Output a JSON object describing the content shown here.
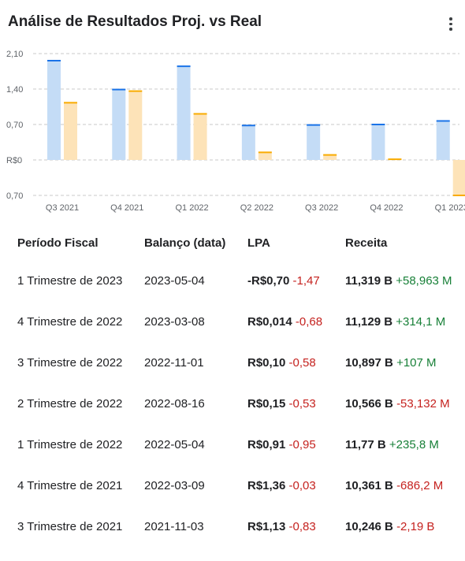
{
  "header": {
    "title": "Análise de Resultados Proj. vs Real",
    "menu_icon": "more-vert-icon"
  },
  "colors": {
    "projected": "#c4dcf6",
    "projected_edge": "#1a73e8",
    "actual": "#fde3b8",
    "actual_edge": "#f9ab00",
    "negative": "#c5221f",
    "positive": "#188038"
  },
  "chart_data": {
    "type": "bar",
    "categories": [
      "Q3 2021",
      "Q4 2021",
      "Q1 2022",
      "Q2 2022",
      "Q3 2022",
      "Q4 2022",
      "Q1 2023"
    ],
    "series": [
      {
        "values": [
          1.96,
          1.39,
          1.85,
          0.68,
          0.69,
          0.7,
          0.77
        ]
      },
      {
        "values": [
          1.13,
          1.36,
          0.91,
          0.15,
          0.1,
          0.014,
          -0.7
        ]
      }
    ],
    "y_tick_labels": [
      "2,10",
      "1,40",
      "0,70",
      "R$0",
      "0,70"
    ],
    "y_tick_values": [
      2.1,
      1.4,
      0.7,
      0,
      -0.7
    ],
    "ylim": [
      -0.7,
      2.1
    ],
    "grid": true
  },
  "table": {
    "headers": {
      "period": "Período Fiscal",
      "date": "Balanço (data)",
      "eps": "LPA",
      "revenue": "Receita"
    },
    "rows": [
      {
        "period": "1 Trimestre de 2023",
        "date": "2023-05-04",
        "eps": "-R$0,70",
        "eps_surprise": "-1,47",
        "eps_sign": "neg",
        "revenue": "11,319 B",
        "revenue_surprise": "+58,963 M",
        "revenue_sign": "pos"
      },
      {
        "period": "4 Trimestre de 2022",
        "date": "2023-03-08",
        "eps": "R$0,014",
        "eps_surprise": "-0,68",
        "eps_sign": "neg",
        "revenue": "11,129 B",
        "revenue_surprise": "+314,1 M",
        "revenue_sign": "pos"
      },
      {
        "period": "3 Trimestre de 2022",
        "date": "2022-11-01",
        "eps": "R$0,10",
        "eps_surprise": "-0,58",
        "eps_sign": "neg",
        "revenue": "10,897 B",
        "revenue_surprise": "+107 M",
        "revenue_sign": "pos"
      },
      {
        "period": "2 Trimestre de 2022",
        "date": "2022-08-16",
        "eps": "R$0,15",
        "eps_surprise": "-0,53",
        "eps_sign": "neg",
        "revenue": "10,566 B",
        "revenue_surprise": "-53,132 M",
        "revenue_sign": "neg"
      },
      {
        "period": "1 Trimestre de 2022",
        "date": "2022-05-04",
        "eps": "R$0,91",
        "eps_surprise": "-0,95",
        "eps_sign": "neg",
        "revenue": "11,77 B",
        "revenue_surprise": "+235,8 M",
        "revenue_sign": "pos"
      },
      {
        "period": "4 Trimestre de 2021",
        "date": "2022-03-09",
        "eps": "R$1,36",
        "eps_surprise": "-0,03",
        "eps_sign": "neg",
        "revenue": "10,361 B",
        "revenue_surprise": "-686,2 M",
        "revenue_sign": "neg"
      },
      {
        "period": "3 Trimestre de 2021",
        "date": "2021-11-03",
        "eps": "R$1,13",
        "eps_surprise": "-0,83",
        "eps_sign": "neg",
        "revenue": "10,246 B",
        "revenue_surprise": "-2,19 B",
        "revenue_sign": "neg"
      }
    ]
  }
}
